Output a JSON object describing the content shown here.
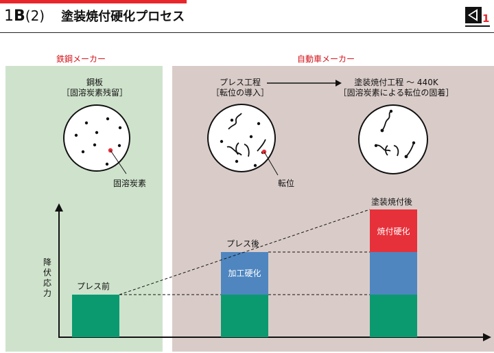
{
  "header": {
    "number": "1",
    "letter": "B",
    "paren": "(2)",
    "title": "塗装焼付硬化プロセス",
    "accent_color": "#e8262c"
  },
  "logo": {
    "icon": "company-logo-icon"
  },
  "sections": {
    "steel_maker": "鉄鋼メーカー",
    "auto_maker": "自動車メーカー"
  },
  "stages": [
    {
      "title": "鋼板",
      "subtitle": "［固溶炭素残留］"
    },
    {
      "title": "プレス工程",
      "subtitle": "［転位の導入］"
    },
    {
      "title": "塗装焼付工程 ～ 440K",
      "subtitle": "［固溶炭素による転位の固着］"
    }
  ],
  "annotations": {
    "solute_carbon": "固溶炭素",
    "dislocation": "転位"
  },
  "chart": {
    "y_label_chars": [
      "降",
      "伏",
      "応",
      "力"
    ],
    "colors": {
      "base": "#0b9a70",
      "work_hardening": "#4f86c0",
      "bake_hardening": "#e6313a"
    },
    "bars": [
      {
        "label": "プレス前",
        "segments": [
          {
            "name": "",
            "value": 1
          }
        ]
      },
      {
        "label": "プレス後",
        "segments": [
          {
            "name": "",
            "value": 1
          },
          {
            "name": "加工硬化",
            "value": 1
          }
        ]
      },
      {
        "label": "塗装焼付後",
        "segments": [
          {
            "name": "",
            "value": 1
          },
          {
            "name": "",
            "value": 1
          },
          {
            "name": "焼付硬化",
            "value": 1
          }
        ]
      }
    ]
  }
}
